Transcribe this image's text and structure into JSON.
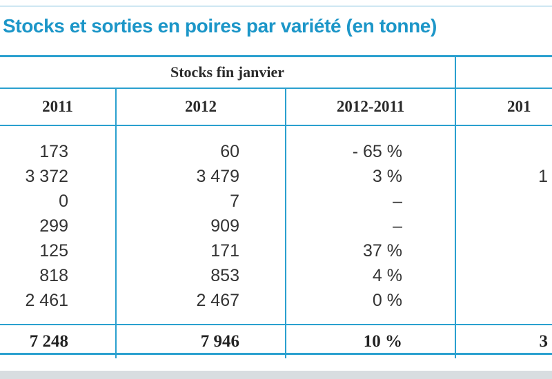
{
  "title": "Stocks et sorties en poires par variété (en tonne)",
  "group_header": "Stocks fin janvier",
  "columns": [
    "2011",
    "2012",
    "2012-2011",
    "201"
  ],
  "rows": [
    {
      "y2011": "173",
      "y2012": "60",
      "diff": "- 65 %",
      "next": ""
    },
    {
      "y2011": "3 372",
      "y2012": "3 479",
      "diff": "3 %",
      "next": "1"
    },
    {
      "y2011": "0",
      "y2012": "7",
      "diff": "–",
      "next": ""
    },
    {
      "y2011": "299",
      "y2012": "909",
      "diff": "–",
      "next": ""
    },
    {
      "y2011": "125",
      "y2012": "171",
      "diff": "37 %",
      "next": ""
    },
    {
      "y2011": "818",
      "y2012": "853",
      "diff": "4 %",
      "next": ""
    },
    {
      "y2011": "2 461",
      "y2012": "2 467",
      "diff": "0 %",
      "next": ""
    }
  ],
  "total": {
    "y2011": "7 248",
    "y2012": "7 946",
    "diff": "10 %",
    "next": "3"
  },
  "colors": {
    "accent": "#2aa0cf",
    "title": "#1c96c8"
  }
}
